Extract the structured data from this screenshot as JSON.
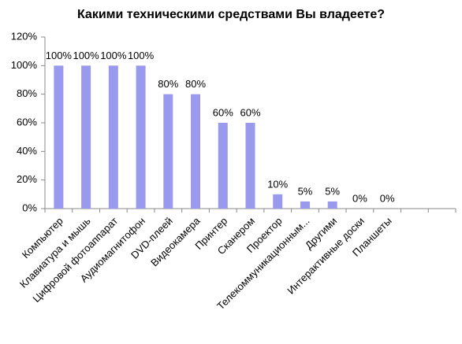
{
  "chart_data": {
    "type": "bar",
    "title": "Какими техническими средствами Вы владеете?",
    "categories": [
      "Компьютер",
      "Клавиатура и мышь",
      "Цифровой фотоаппарат",
      "Аудиомагнитофон",
      "DVD-плеей",
      "Видеокамера",
      "Принтер",
      "Сканером",
      "Проектор",
      "Телекоммуникационным...",
      "Другими",
      "Интерактивные доски",
      "Планшеты",
      null,
      null
    ],
    "values": [
      100,
      100,
      100,
      100,
      80,
      80,
      60,
      60,
      10,
      5,
      5,
      0,
      0,
      null,
      null
    ],
    "value_labels": [
      "100%",
      "100%",
      "100%",
      "100%",
      "80%",
      "80%",
      "60%",
      "60%",
      "10%",
      "5%",
      "5%",
      "0%",
      "0%",
      null,
      null
    ],
    "color": "#9999ee",
    "ylim": [
      0,
      120
    ],
    "yticks": [
      {
        "value": 0,
        "label": "0%"
      },
      {
        "value": 20,
        "label": "20%"
      },
      {
        "value": 40,
        "label": "40%"
      },
      {
        "value": 60,
        "label": "60%"
      },
      {
        "value": 80,
        "label": "80%"
      },
      {
        "value": 100,
        "label": "100%"
      },
      {
        "value": 120,
        "label": "120%"
      }
    ],
    "grid": false
  }
}
